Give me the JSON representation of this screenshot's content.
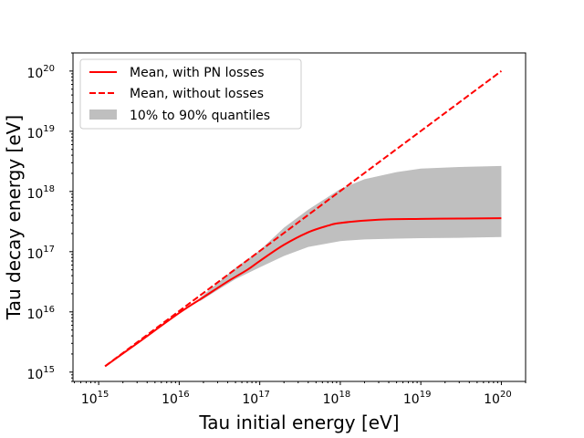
{
  "chart_data": {
    "type": "line",
    "xlabel": "Tau initial energy [eV]",
    "ylabel": "Tau decay energy [eV]",
    "xscale": "log",
    "yscale": "log",
    "xlim": [
      480000000000000.0,
      2e+20
    ],
    "ylim": [
      700000000000000.0,
      2e+20
    ],
    "xticks": [
      {
        "base": "10",
        "exp": "15",
        "value": 1000000000000000.0
      },
      {
        "base": "10",
        "exp": "16",
        "value": 1e+16
      },
      {
        "base": "10",
        "exp": "17",
        "value": 1e+17
      },
      {
        "base": "10",
        "exp": "18",
        "value": 1e+18
      },
      {
        "base": "10",
        "exp": "19",
        "value": 1e+19
      },
      {
        "base": "10",
        "exp": "20",
        "value": 1e+20
      }
    ],
    "yticks": [
      {
        "base": "10",
        "exp": "15",
        "value": 1000000000000000.0
      },
      {
        "base": "10",
        "exp": "16",
        "value": 1e+16
      },
      {
        "base": "10",
        "exp": "17",
        "value": 1e+17
      },
      {
        "base": "10",
        "exp": "18",
        "value": 1e+18
      },
      {
        "base": "10",
        "exp": "19",
        "value": 1e+19
      },
      {
        "base": "10",
        "exp": "20",
        "value": 1e+20
      }
    ],
    "legend_position": "top-left",
    "series": [
      {
        "name": "Mean, with PN losses",
        "style": "solid",
        "color": "#ff0000",
        "x": [
          1200000000000000.0,
          3000000000000000.0,
          1e+16,
          2e+16,
          4e+16,
          7e+16,
          1e+17,
          2e+17,
          4e+17,
          7e+17,
          1e+18,
          3e+18,
          1e+19,
          3e+19,
          1e+20
        ],
        "y": [
          1250000000000000.0,
          3000000000000000.0,
          9600000000000000.0,
          1.75e+16,
          3.2e+16,
          5e+16,
          7e+16,
          1.3e+17,
          2.1e+17,
          2.7e+17,
          3e+17,
          3.4e+17,
          3.5e+17,
          3.55e+17,
          3.6e+17
        ]
      },
      {
        "name": "Mean, without losses",
        "style": "dashed",
        "color": "#ff0000",
        "x": [
          1200000000000000.0,
          1e+20
        ],
        "y": [
          1250000000000000.0,
          1e+20
        ]
      },
      {
        "name": "10% to 90% quantiles",
        "type": "band",
        "color": "#bfbfbf",
        "x": [
          1.8e+16,
          3e+16,
          5e+16,
          1e+17,
          2e+17,
          4e+17,
          1e+18,
          2e+18,
          5e+18,
          1e+19,
          3e+19,
          1e+20
        ],
        "lower": [
          1.5e+16,
          2.3e+16,
          3.5e+16,
          5.5e+16,
          8.5e+16,
          1.2e+17,
          1.5e+17,
          1.6e+17,
          1.65e+17,
          1.68e+17,
          1.7e+17,
          1.75e+17
        ],
        "upper": [
          1.7e+16,
          3e+16,
          5.4e+16,
          1.05e+17,
          2.5e+17,
          5e+17,
          1.1e+18,
          1.6e+18,
          2.1e+18,
          2.4e+18,
          2.55e+18,
          2.65e+18
        ]
      }
    ]
  }
}
